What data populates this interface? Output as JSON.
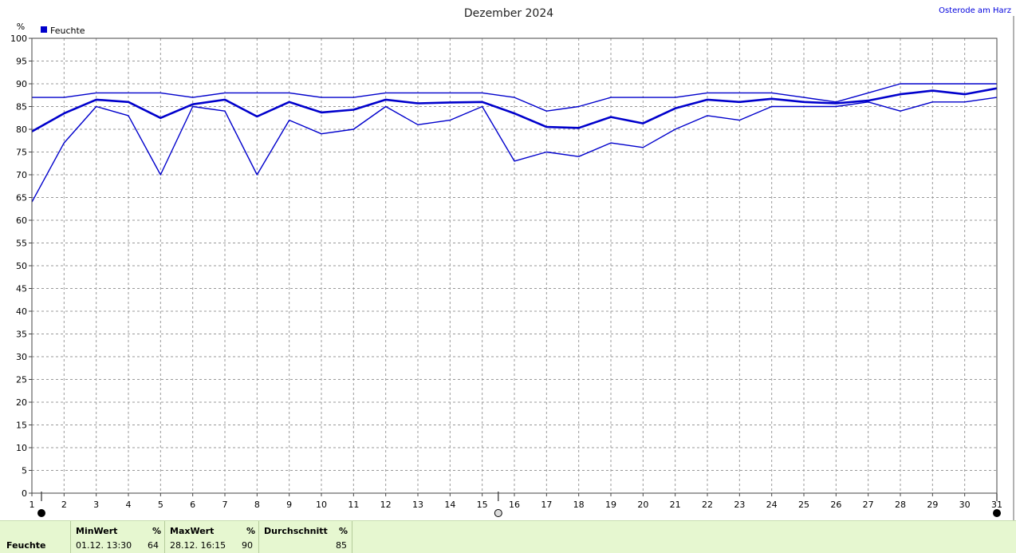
{
  "page": {
    "location": "Osterode am Harz"
  },
  "chart_data": {
    "type": "line",
    "title": "Dezember 2024",
    "ylabel": "%",
    "xlabel": "",
    "ylim": [
      0,
      100
    ],
    "yticks": [
      0,
      5,
      10,
      15,
      20,
      25,
      30,
      35,
      40,
      45,
      50,
      55,
      60,
      65,
      70,
      75,
      80,
      85,
      90,
      95,
      100
    ],
    "x": [
      1,
      2,
      3,
      4,
      5,
      6,
      7,
      8,
      9,
      10,
      11,
      12,
      13,
      14,
      15,
      16,
      17,
      18,
      19,
      20,
      21,
      22,
      23,
      24,
      25,
      26,
      27,
      28,
      29,
      30,
      31
    ],
    "grid": true,
    "legend": {
      "position": "top-left",
      "entries": [
        "Feuchte"
      ]
    },
    "colors": {
      "series": "#0000cc",
      "legend_box": "#0000cc",
      "frame": "#444444",
      "grid": "#999999"
    },
    "series": [
      {
        "name": "Feuchte",
        "role": "max",
        "values": [
          87,
          87,
          88,
          88,
          88,
          87,
          88,
          88,
          88,
          87,
          87,
          88,
          88,
          88,
          88,
          87,
          84,
          85,
          87,
          87,
          87,
          88,
          88,
          88,
          87,
          86,
          88,
          90,
          90,
          90,
          90
        ]
      },
      {
        "name": "Feuchte",
        "role": "mean",
        "values": [
          79.5,
          83.5,
          86.5,
          86,
          82.5,
          85.5,
          86.5,
          82.8,
          86,
          83.7,
          84.3,
          86.5,
          85.7,
          85.9,
          86,
          83.5,
          80.5,
          80.3,
          82.7,
          81.3,
          84.6,
          86.5,
          86,
          86.7,
          86,
          85.7,
          86.3,
          87.7,
          88.5,
          87.7,
          89
        ]
      },
      {
        "name": "Feuchte",
        "role": "min",
        "values": [
          64,
          77,
          85,
          83,
          70,
          85,
          84,
          70,
          82,
          79,
          80,
          85,
          81,
          82,
          85,
          73,
          75,
          74,
          77,
          76,
          80,
          83,
          82,
          85,
          85,
          85,
          86,
          84,
          86,
          86,
          87
        ]
      }
    ],
    "markers": [
      {
        "x": 1,
        "style": "filled"
      },
      {
        "x": 15.5,
        "style": "open"
      },
      {
        "x": 31,
        "style": "filled"
      }
    ]
  },
  "stats": {
    "label": "Feuchte",
    "min": {
      "header": "MinWert",
      "unit": "%",
      "time": "01.12.  13:30",
      "value": "64"
    },
    "max": {
      "header": "MaxWert",
      "unit": "%",
      "time": "28.12.  16:15",
      "value": "90"
    },
    "avg": {
      "header": "Durchschnitt",
      "unit": "%",
      "value": "85"
    }
  }
}
